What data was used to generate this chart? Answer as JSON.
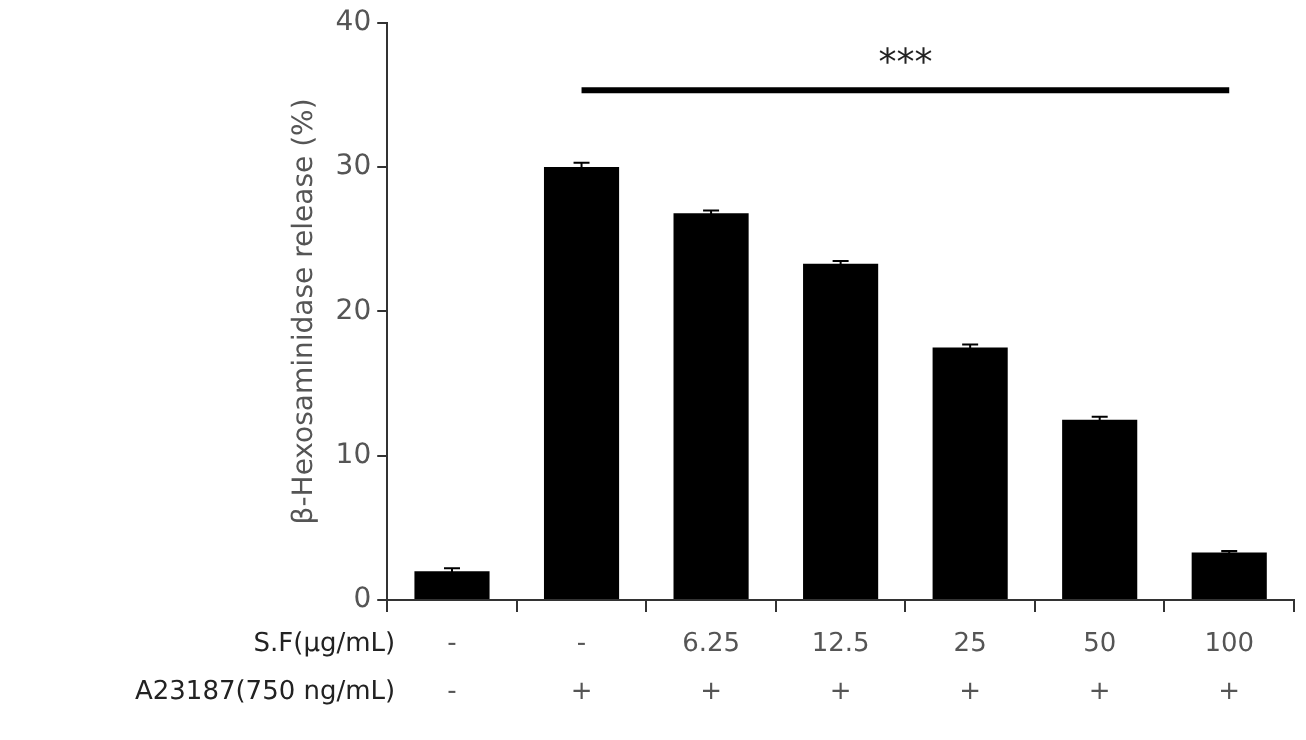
{
  "chart_data": {
    "type": "bar",
    "ylabel": "β-Hexosaminidase release (%)",
    "categories": [
      "-\n-",
      "-\n+",
      "6.25\n+",
      "12.5\n+",
      "25\n+",
      "50\n+",
      "100\n+"
    ],
    "values": [
      2.0,
      30.0,
      26.8,
      23.3,
      17.5,
      12.5,
      3.3
    ],
    "errors": [
      0.2,
      0.3,
      0.2,
      0.2,
      0.2,
      0.2,
      0.1
    ],
    "color": "#000000",
    "ylim": [
      0,
      40
    ],
    "yticks": [
      0,
      10,
      20,
      30,
      40
    ],
    "grid": false,
    "legend": false,
    "annotations": [
      "***",
      "S.F(μg/mL)",
      "A23187(750 ng/mL)"
    ]
  }
}
